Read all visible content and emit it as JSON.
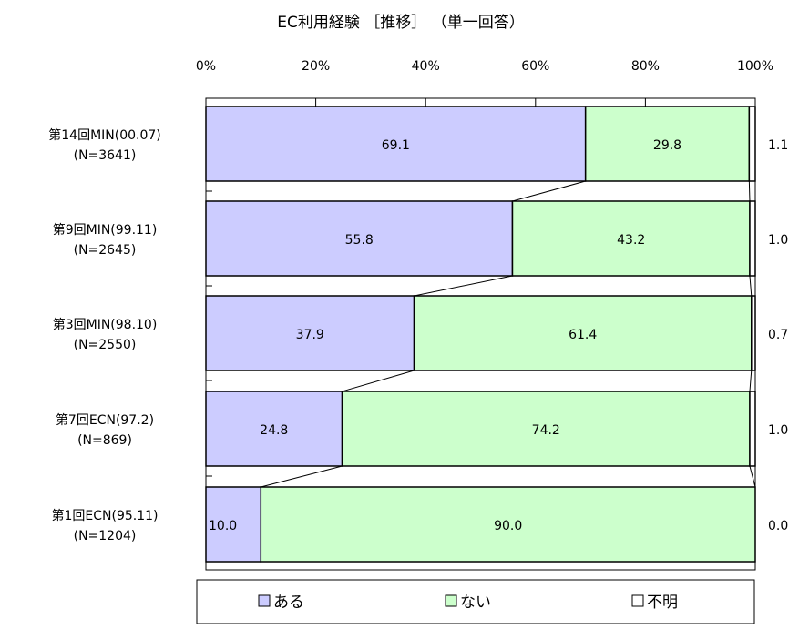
{
  "chart_data": {
    "type": "bar",
    "orientation": "horizontal",
    "stacked": true,
    "percent": true,
    "title": "EC利用経験 ［推移］ （単一回答）",
    "xlim": [
      0,
      100
    ],
    "x_ticks": [
      "0%",
      "20%",
      "40%",
      "60%",
      "80%",
      "100%"
    ],
    "categories": [
      {
        "line1": "第14回MIN(00.07)",
        "line2": "(N=3641)"
      },
      {
        "line1": "第9回MIN(99.11)",
        "line2": "(N=2645)"
      },
      {
        "line1": "第3回MIN(98.10)",
        "line2": "(N=2550)"
      },
      {
        "line1": "第7回ECN(97.2)",
        "line2": "(N=869)"
      },
      {
        "line1": "第1回ECN(95.11)",
        "line2": "(N=1204)"
      }
    ],
    "series": [
      {
        "name": "ある",
        "color": "#ccccff",
        "values": [
          69.1,
          55.8,
          37.9,
          24.8,
          10.0
        ],
        "labels": [
          "69.1",
          "55.8",
          "37.9",
          "24.8",
          "10.0"
        ]
      },
      {
        "name": "ない",
        "color": "#ccffcc",
        "values": [
          29.8,
          43.2,
          61.4,
          74.2,
          90.0
        ],
        "labels": [
          "29.8",
          "43.2",
          "61.4",
          "74.2",
          "90.0"
        ]
      },
      {
        "name": "不明",
        "color": "#ffffff",
        "values": [
          1.1,
          1.0,
          0.7,
          1.0,
          0.0
        ],
        "labels": [
          "1.1",
          "1.0",
          "0.7",
          "1.0",
          "0.0"
        ]
      }
    ],
    "legend": {
      "position": "bottom"
    },
    "series_lines": true,
    "grid": false
  }
}
